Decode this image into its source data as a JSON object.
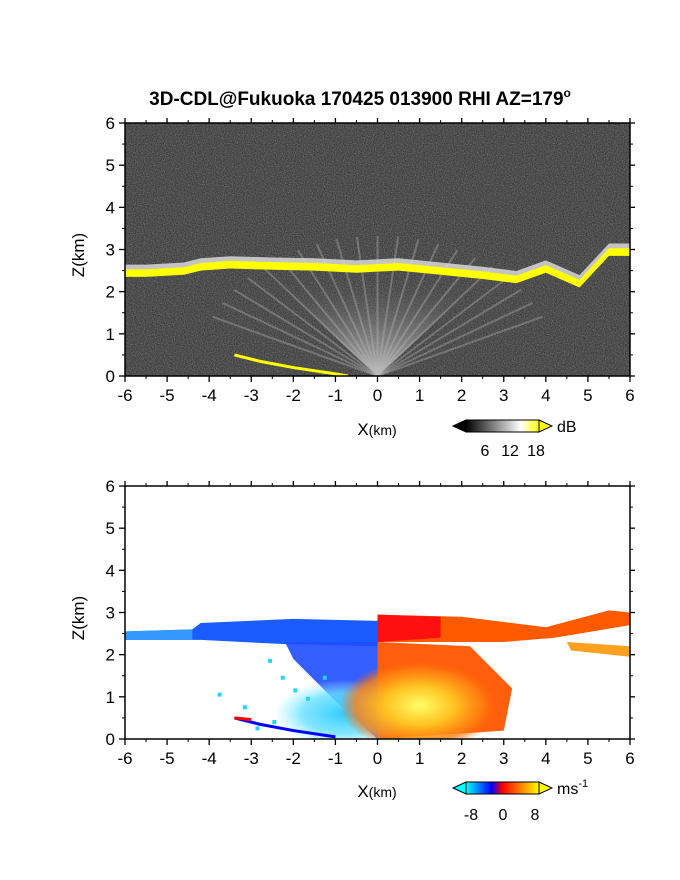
{
  "title": "3D-CDL@Fukuoka 170425 013900 RHI AZ=179",
  "title_degree_mark": "o",
  "chart_data": [
    {
      "type": "heatmap",
      "name": "reflectivity",
      "xlabel": "X",
      "xlabel_unit": "(km)",
      "ylabel": "Z(km)",
      "xlim": [
        -6,
        6
      ],
      "ylim": [
        0,
        6
      ],
      "x_ticks": [
        -6,
        -5,
        -4,
        -3,
        -2,
        -1,
        0,
        1,
        2,
        3,
        4,
        5,
        6
      ],
      "y_ticks": [
        0,
        1,
        2,
        3,
        4,
        5,
        6
      ],
      "colorbar": {
        "unit": "dB",
        "ticks": [
          "6",
          "12",
          "18"
        ],
        "range": [
          0,
          21
        ],
        "colors": [
          "#000000",
          "#ffffff",
          "#ffff00"
        ]
      },
      "features": {
        "bright_layer": [
          {
            "x": -6.0,
            "z": 2.45
          },
          {
            "x": -5.5,
            "z": 2.45
          },
          {
            "x": -4.6,
            "z": 2.5
          },
          {
            "x": -4.2,
            "z": 2.6
          },
          {
            "x": -3.5,
            "z": 2.65
          },
          {
            "x": -2.5,
            "z": 2.62
          },
          {
            "x": -1.5,
            "z": 2.6
          },
          {
            "x": -0.5,
            "z": 2.55
          },
          {
            "x": 0.5,
            "z": 2.6
          },
          {
            "x": 1.5,
            "z": 2.5
          },
          {
            "x": 2.5,
            "z": 2.4
          },
          {
            "x": 3.3,
            "z": 2.3
          },
          {
            "x": 4.0,
            "z": 2.55
          },
          {
            "x": 4.8,
            "z": 2.2
          },
          {
            "x": 5.5,
            "z": 2.95
          },
          {
            "x": 6.0,
            "z": 2.95
          }
        ],
        "ground_echo": [
          {
            "x": -3.4,
            "z": 0.5
          },
          {
            "x": -2.8,
            "z": 0.35
          },
          {
            "x": -2.0,
            "z": 0.2
          },
          {
            "x": -1.0,
            "z": 0.05
          },
          {
            "x": -0.7,
            "z": 0.0
          }
        ]
      }
    },
    {
      "type": "heatmap",
      "name": "doppler_velocity",
      "xlabel": "X",
      "xlabel_unit": "(km)",
      "ylabel": "Z(km)",
      "xlim": [
        -6,
        6
      ],
      "ylim": [
        0,
        6
      ],
      "x_ticks": [
        -6,
        -5,
        -4,
        -3,
        -2,
        -1,
        0,
        1,
        2,
        3,
        4,
        5,
        6
      ],
      "y_ticks": [
        0,
        1,
        2,
        3,
        4,
        5,
        6
      ],
      "colorbar": {
        "unit": "ms",
        "unit_exponent": "-1",
        "ticks": [
          "-8",
          "0",
          "8"
        ],
        "range": [
          -10,
          10
        ],
        "colors": [
          "#00ffff",
          "#0000ff",
          "#ff0000",
          "#ffff00"
        ]
      },
      "features": {
        "negative_layer": {
          "x0": -6.0,
          "x1": 0.0,
          "z": 2.5
        },
        "positive_layer": {
          "x0": 0.0,
          "x1": 6.0,
          "z": 2.6
        },
        "low_negative_core": {
          "x": -0.8,
          "z": 0.6
        },
        "low_positive_core": {
          "x": 1.0,
          "z": 0.8
        }
      }
    }
  ]
}
